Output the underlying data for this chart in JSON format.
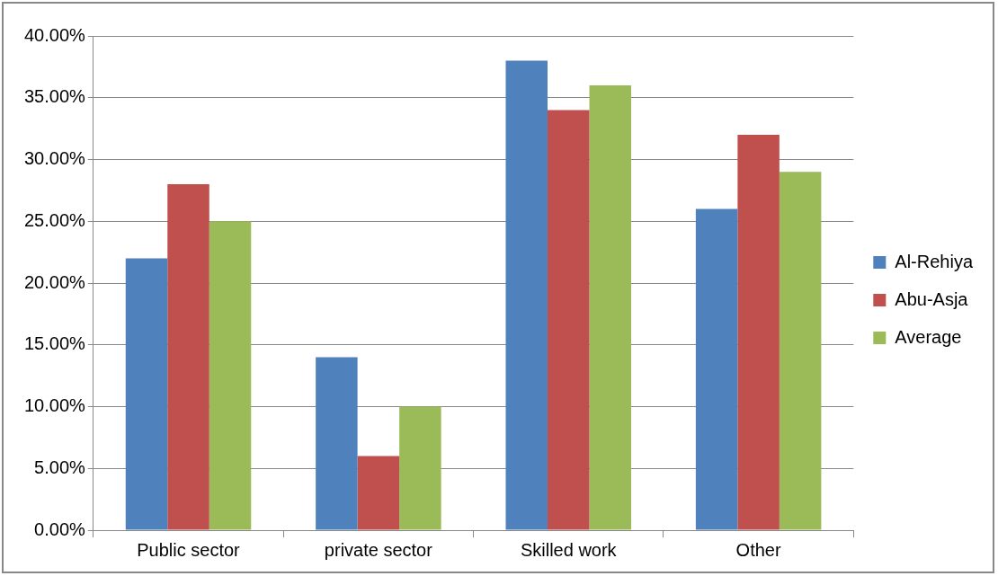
{
  "chart_data": {
    "type": "bar",
    "categories": [
      "Public sector",
      "private sector",
      "Skilled work",
      "Other"
    ],
    "series": [
      {
        "name": "Al-Rehiya",
        "color": "#4f81bd",
        "values": [
          22,
          14,
          38,
          26
        ]
      },
      {
        "name": "Abu-Asja",
        "color": "#c0504d",
        "values": [
          28,
          6,
          34,
          32
        ]
      },
      {
        "name": "Average",
        "color": "#9bbb59",
        "values": [
          25,
          10,
          36,
          29
        ]
      }
    ],
    "ylim": [
      0,
      40
    ],
    "yticks": [
      {
        "value": 0,
        "label": "0.00%"
      },
      {
        "value": 5,
        "label": "5.00%"
      },
      {
        "value": 10,
        "label": "10.00%"
      },
      {
        "value": 15,
        "label": "15.00%"
      },
      {
        "value": 20,
        "label": "20.00%"
      },
      {
        "value": 25,
        "label": "25.00%"
      },
      {
        "value": 30,
        "label": "30.00%"
      },
      {
        "value": 35,
        "label": "35.00%"
      },
      {
        "value": 40,
        "label": "40.00%"
      }
    ],
    "grid": "y",
    "legend": "right"
  }
}
